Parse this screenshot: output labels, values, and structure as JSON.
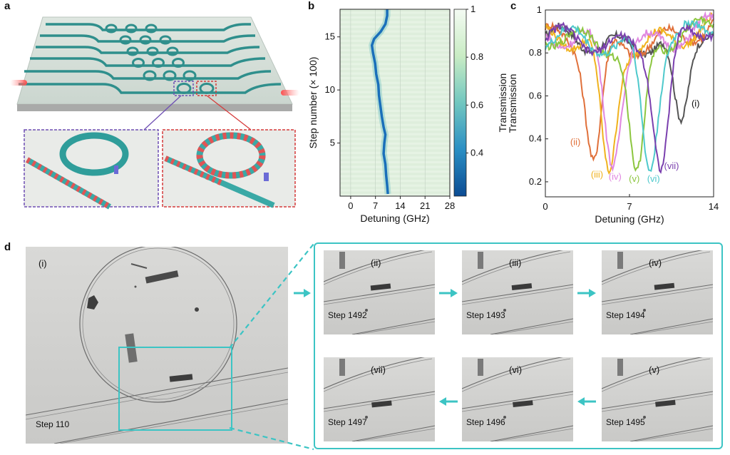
{
  "panels": {
    "a": {
      "label": "a"
    },
    "b": {
      "label": "b"
    },
    "c": {
      "label": "c"
    },
    "d": {
      "label": "d"
    }
  },
  "colors": {
    "waveguide": "#2f8f8c",
    "cyan_frame": "#3cc4c4",
    "purple_box": "#6f4fb4",
    "red_box": "#d63b3b"
  },
  "chart_data": [
    {
      "type": "heatmap",
      "xlabel": "Detuning (GHz)",
      "ylabel": "Step number (× 100)",
      "x_ticks": [
        "0",
        "7",
        "14",
        "21",
        "28"
      ],
      "y_ticks": [
        "5",
        "10",
        "15"
      ],
      "xlim": [
        -3,
        28
      ],
      "ylim": [
        0,
        17.6
      ],
      "colorbar": {
        "label": "Transmission",
        "ticks": [
          "1",
          "0.8",
          "0.6",
          "0.4"
        ],
        "range": [
          0.22,
          1
        ]
      },
      "resonance_track": {
        "step_x100": [
          0.2,
          1,
          2,
          3,
          4,
          5,
          5.8,
          6.5,
          7.5,
          8.5,
          9.5,
          10.5,
          11.5,
          12.5,
          13.5,
          14.2,
          14.8,
          15.5,
          16.2,
          17.0,
          17.6
        ],
        "detuning_ghz": [
          10.5,
          10.3,
          10.0,
          9.8,
          9.3,
          9.5,
          9.8,
          9.3,
          8.8,
          8.4,
          8.0,
          7.8,
          7.2,
          6.9,
          6.3,
          6.0,
          6.6,
          8.5,
          9.8,
          10.3,
          10.3
        ]
      }
    },
    {
      "type": "line",
      "xlabel": "Detuning (GHz)",
      "ylabel": "Transmission",
      "x_ticks": [
        "0",
        "7",
        "14"
      ],
      "y_ticks": [
        "0.2",
        "0.4",
        "0.6",
        "0.8",
        "1"
      ],
      "xlim": [
        0,
        14
      ],
      "ylim": [
        0.13,
        1.0
      ],
      "series": [
        {
          "name": "(i)",
          "color": "#555555",
          "center": 11.3,
          "depth": 0.49
        },
        {
          "name": "(ii)",
          "color": "#e0703a",
          "center": 4.0,
          "depth": 0.3
        },
        {
          "name": "(iii)",
          "color": "#f0b21e",
          "center": 5.3,
          "depth": 0.25
        },
        {
          "name": "(iv)",
          "color": "#e087e0",
          "center": 5.6,
          "depth": 0.27
        },
        {
          "name": "(v)",
          "color": "#8cc63f",
          "center": 7.6,
          "depth": 0.25
        },
        {
          "name": "(vi)",
          "color": "#4ec9cc",
          "center": 8.7,
          "depth": 0.25
        },
        {
          "name": "(vii)",
          "color": "#7a3fae",
          "center": 9.6,
          "depth": 0.26
        }
      ]
    }
  ],
  "micrographs": [
    {
      "roman": "(i)",
      "step": "Step 110"
    },
    {
      "roman": "(ii)",
      "step": "Step 1492"
    },
    {
      "roman": "(iii)",
      "step": "Step 1493"
    },
    {
      "roman": "(iv)",
      "step": "Step 1494"
    },
    {
      "roman": "(vii)",
      "step": "Step 1497"
    },
    {
      "roman": "(vi)",
      "step": "Step 1496"
    },
    {
      "roman": "(v)",
      "step": "Step 1495"
    }
  ]
}
